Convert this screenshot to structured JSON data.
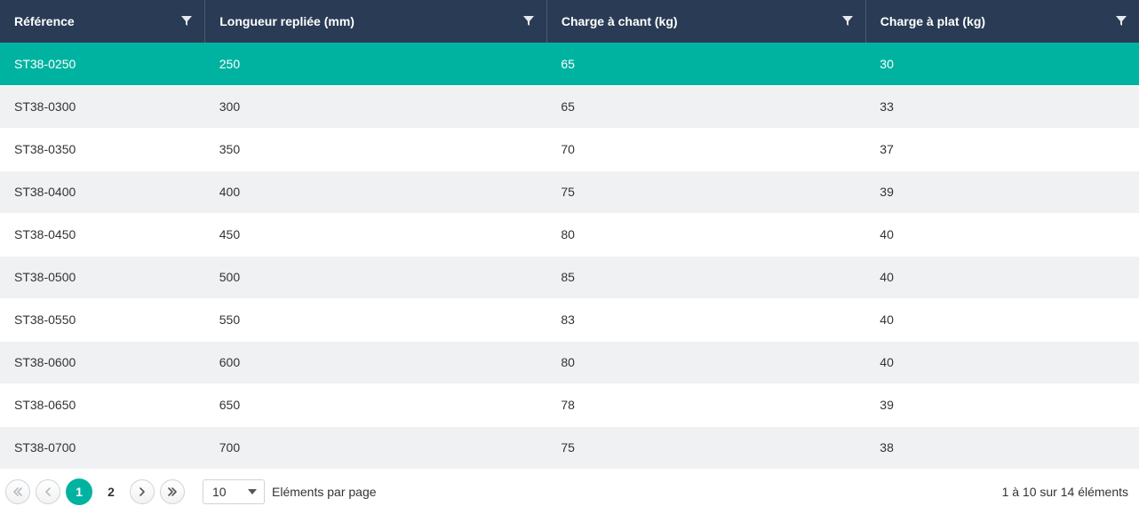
{
  "columns": [
    {
      "label": "Référence",
      "width": "18%"
    },
    {
      "label": "Longueur repliée (mm)",
      "width": "30%"
    },
    {
      "label": "Charge à chant (kg)",
      "width": "28%"
    },
    {
      "label": "Charge à plat (kg)",
      "width": "24%"
    }
  ],
  "rows": [
    {
      "cells": [
        "ST38-0250",
        "250",
        "65",
        "30"
      ],
      "selected": true
    },
    {
      "cells": [
        "ST38-0300",
        "300",
        "65",
        "33"
      ],
      "selected": false
    },
    {
      "cells": [
        "ST38-0350",
        "350",
        "70",
        "37"
      ],
      "selected": false
    },
    {
      "cells": [
        "ST38-0400",
        "400",
        "75",
        "39"
      ],
      "selected": false
    },
    {
      "cells": [
        "ST38-0450",
        "450",
        "80",
        "40"
      ],
      "selected": false
    },
    {
      "cells": [
        "ST38-0500",
        "500",
        "85",
        "40"
      ],
      "selected": false
    },
    {
      "cells": [
        "ST38-0550",
        "550",
        "83",
        "40"
      ],
      "selected": false
    },
    {
      "cells": [
        "ST38-0600",
        "600",
        "80",
        "40"
      ],
      "selected": false
    },
    {
      "cells": [
        "ST38-0650",
        "650",
        "78",
        "39"
      ],
      "selected": false
    },
    {
      "cells": [
        "ST38-0700",
        "700",
        "75",
        "38"
      ],
      "selected": false
    }
  ],
  "pager": {
    "pages": [
      "1",
      "2"
    ],
    "active_index": 0,
    "page_size_value": "10",
    "page_size_label": "Eléments par page",
    "range_text": "1 à 10 sur 14 éléments",
    "first_disabled": true,
    "prev_disabled": true,
    "next_disabled": false,
    "last_disabled": false
  },
  "colors": {
    "header_bg": "#2a3c55",
    "accent": "#00b3a1",
    "row_alt": "#f0f1f2"
  }
}
